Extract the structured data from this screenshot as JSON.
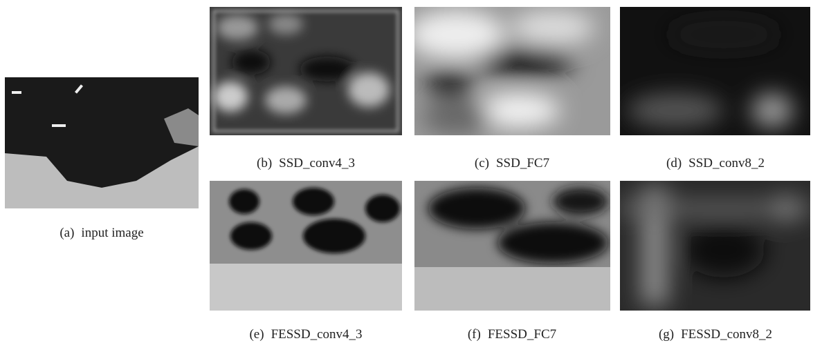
{
  "figure": {
    "panels": [
      {
        "label": "(a)",
        "caption": "input image"
      },
      {
        "label": "(b)",
        "caption": "SSD_conv4_3"
      },
      {
        "label": "(c)",
        "caption": "SSD_FC7"
      },
      {
        "label": "(d)",
        "caption": "SSD_conv8_2"
      },
      {
        "label": "(e)",
        "caption": "FESSD_conv4_3"
      },
      {
        "label": "(f)",
        "caption": "FESSD_FC7"
      },
      {
        "label": "(g)",
        "caption": "FESSD_conv8_2"
      }
    ]
  }
}
